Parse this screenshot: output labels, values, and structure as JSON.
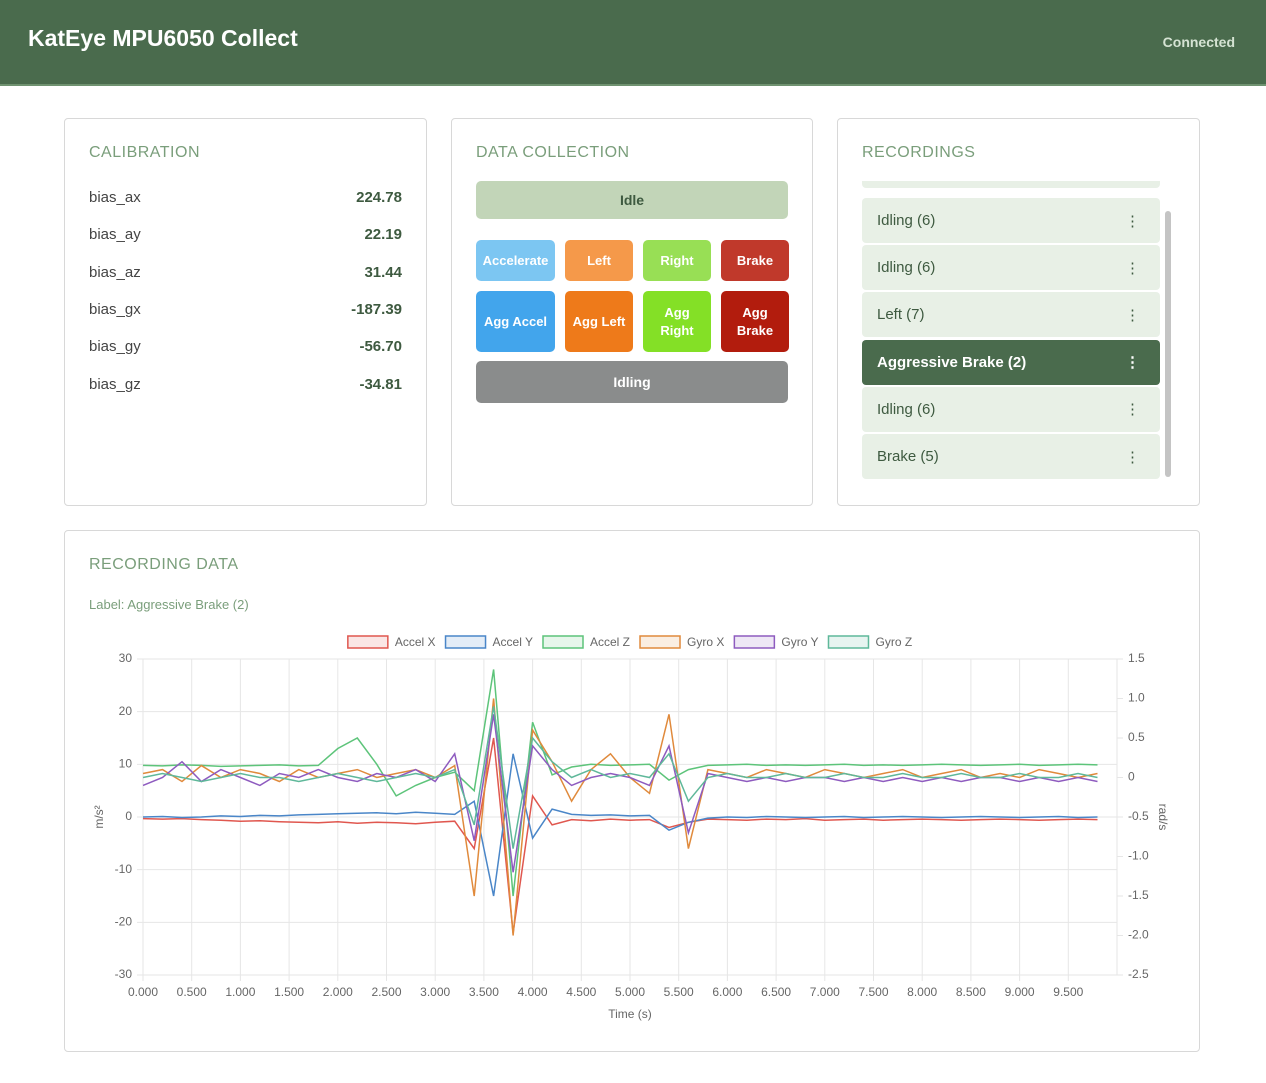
{
  "header": {
    "title": "KatEye MPU6050 Collect",
    "status": "Connected"
  },
  "calibration": {
    "title": "CALIBRATION",
    "rows": [
      [
        "bias_ax",
        "224.78"
      ],
      [
        "bias_ay",
        "22.19"
      ],
      [
        "bias_az",
        "31.44"
      ],
      [
        "bias_gx",
        "-187.39"
      ],
      [
        "bias_gy",
        "-56.70"
      ],
      [
        "bias_gz",
        "-34.81"
      ]
    ]
  },
  "data_collection": {
    "title": "DATA COLLECTION",
    "status": "Idle",
    "buttons": [
      {
        "label": "Accelerate",
        "color": "#7cc6f2"
      },
      {
        "label": "Left",
        "color": "#f5994a"
      },
      {
        "label": "Right",
        "color": "#98df55"
      },
      {
        "label": "Brake",
        "color": "#c0392b"
      },
      {
        "label": "Agg Accel",
        "color": "#42a5ec"
      },
      {
        "label": "Agg Left",
        "color": "#ee7a1a"
      },
      {
        "label": "Agg Right",
        "color": "#84e026"
      },
      {
        "label": "Agg Brake",
        "color": "#b21c0d"
      }
    ],
    "current": "Idling"
  },
  "recordings": {
    "title": "RECORDINGS",
    "items": [
      "Idling (6)",
      "Idling (6)",
      "Left (7)",
      "Aggressive Brake (2)",
      "Idling (6)",
      "Brake (5)"
    ],
    "selected": 3
  },
  "recording_data": {
    "title": "RECORDING DATA",
    "label": "Label: Aggressive Brake (2)"
  },
  "chart_data": {
    "type": "line",
    "x_label": "Time (s)",
    "y_label": "m/s²",
    "y2_label": "rad/s",
    "grid": true,
    "legend": "top",
    "x": [
      0,
      0.2,
      0.4,
      0.6,
      0.8,
      1,
      1.2,
      1.4,
      1.6,
      1.8,
      2,
      2.2,
      2.4,
      2.6,
      2.8,
      3,
      3.2,
      3.4,
      3.6,
      3.8,
      4,
      4.2,
      4.4,
      4.6,
      4.8,
      5,
      5.2,
      5.4,
      5.6,
      5.8,
      6,
      6.2,
      6.4,
      6.6,
      6.8,
      7,
      7.2,
      7.4,
      7.6,
      7.8,
      8,
      8.2,
      8.4,
      8.6,
      8.8,
      9,
      9.2,
      9.4,
      9.6,
      9.8
    ],
    "xlim": [
      0,
      10
    ],
    "xticks": [
      {
        "value": 0,
        "label": "0.000"
      },
      {
        "value": 0.5,
        "label": "0.500"
      },
      {
        "value": 1,
        "label": "1.000"
      },
      {
        "value": 1.5,
        "label": "1.500"
      },
      {
        "value": 2,
        "label": "2.000"
      },
      {
        "value": 2.5,
        "label": "2.500"
      },
      {
        "value": 3,
        "label": "3.000"
      },
      {
        "value": 3.5,
        "label": "3.500"
      },
      {
        "value": 4,
        "label": "4.000"
      },
      {
        "value": 4.5,
        "label": "4.500"
      },
      {
        "value": 5,
        "label": "5.000"
      },
      {
        "value": 5.5,
        "label": "5.500"
      },
      {
        "value": 6,
        "label": "6.000"
      },
      {
        "value": 6.5,
        "label": "6.500"
      },
      {
        "value": 7,
        "label": "7.000"
      },
      {
        "value": 7.5,
        "label": "7.500"
      },
      {
        "value": 8,
        "label": "8.000"
      },
      {
        "value": 8.5,
        "label": "8.500"
      },
      {
        "value": 9,
        "label": "9.000"
      },
      {
        "value": 9.5,
        "label": "9.500"
      }
    ],
    "ylim": [
      -30,
      30
    ],
    "yticks": [
      30,
      20,
      10,
      0,
      -10,
      -20,
      -30
    ],
    "y2lim": [
      -2.5,
      1.5
    ],
    "y2ticks": [
      1.5,
      {
        "value": 1,
        "label": "1.0"
      },
      0.5,
      0,
      -0.5,
      {
        "value": -1,
        "label": "-1.0"
      },
      -1.5,
      {
        "value": -2,
        "label": "-2.0"
      },
      -2.5
    ],
    "series": [
      {
        "name": "Accel X",
        "color": "#e0574f",
        "values": [
          -0.3,
          -0.4,
          -0.3,
          -0.5,
          -0.6,
          -0.8,
          -0.7,
          -0.9,
          -1.0,
          -1.1,
          -0.9,
          -1.2,
          -1.0,
          -1.1,
          -1.3,
          -1.0,
          -0.8,
          -6.0,
          15.0,
          -22.0,
          4.0,
          -1.5,
          -0.5,
          -0.7,
          -0.4,
          -0.6,
          -0.5,
          -2.0,
          -1.0,
          -0.4,
          -0.5,
          -0.6,
          -0.4,
          -0.5,
          -0.3,
          -0.6,
          -0.5,
          -0.4,
          -0.6,
          -0.5,
          -0.4,
          -0.5,
          -0.6,
          -0.5,
          -0.4,
          -0.5,
          -0.6,
          -0.5,
          -0.4,
          -0.5
        ]
      },
      {
        "name": "Accel Y",
        "color": "#4a86c8",
        "values": [
          0.0,
          0.1,
          -0.1,
          0.0,
          0.2,
          0.1,
          0.3,
          0.2,
          0.4,
          0.5,
          0.6,
          0.7,
          0.8,
          0.6,
          0.9,
          0.7,
          0.5,
          3.0,
          -15.0,
          12.0,
          -4.0,
          1.5,
          0.5,
          0.3,
          0.4,
          0.2,
          0.3,
          -2.5,
          -1.0,
          -0.2,
          0.0,
          -0.1,
          0.1,
          0.0,
          -0.1,
          0.0,
          0.1,
          -0.1,
          0.0,
          0.1,
          0.0,
          -0.1,
          0.0,
          0.1,
          0.0,
          -0.1,
          0.0,
          0.1,
          -0.1,
          0.0
        ]
      },
      {
        "name": "Accel Z",
        "color": "#5dc47a",
        "values": [
          9.8,
          9.7,
          9.9,
          9.8,
          9.6,
          9.7,
          9.8,
          9.9,
          9.7,
          9.8,
          13.0,
          15.0,
          10.0,
          4.0,
          6.0,
          7.5,
          8.5,
          5.0,
          28.0,
          -15.0,
          18.0,
          8.0,
          9.5,
          10.0,
          9.8,
          9.9,
          10.0,
          7.0,
          9.0,
          9.8,
          9.9,
          10.0,
          9.8,
          9.9,
          9.8,
          9.9,
          10.0,
          9.8,
          9.9,
          9.8,
          9.9,
          10.0,
          9.9,
          9.8,
          9.9,
          10.0,
          9.8,
          9.9,
          10.0,
          9.9
        ]
      },
      {
        "name": "Gyro X",
        "color": "#e08a3c",
        "axis": "y2",
        "values": [
          0.05,
          0.1,
          -0.05,
          0.15,
          0.0,
          0.1,
          0.05,
          -0.05,
          0.1,
          0.0,
          0.05,
          0.1,
          0.0,
          0.05,
          0.1,
          0.0,
          0.15,
          -1.5,
          1.0,
          -2.0,
          0.6,
          0.2,
          -0.3,
          0.1,
          0.3,
          0.0,
          -0.2,
          0.8,
          -0.9,
          0.1,
          0.05,
          0.0,
          0.1,
          0.05,
          0.0,
          0.1,
          0.05,
          0.0,
          0.05,
          0.1,
          0.0,
          0.05,
          0.1,
          0.0,
          0.05,
          0.0,
          0.1,
          0.05,
          0.0,
          0.05
        ]
      },
      {
        "name": "Gyro Y",
        "color": "#8e5bbf",
        "axis": "y2",
        "values": [
          -0.1,
          0.0,
          0.2,
          -0.05,
          0.1,
          0.0,
          -0.1,
          0.05,
          0.0,
          0.1,
          0.0,
          -0.05,
          0.05,
          0.0,
          0.1,
          -0.05,
          0.3,
          -0.8,
          0.8,
          -1.2,
          0.4,
          0.1,
          -0.1,
          0.0,
          0.05,
          0.0,
          -0.1,
          0.4,
          -0.7,
          0.05,
          0.0,
          -0.05,
          0.0,
          -0.05,
          0.0,
          0.0,
          -0.05,
          0.0,
          -0.05,
          0.0,
          -0.05,
          0.0,
          -0.05,
          0.0,
          0.0,
          -0.05,
          0.0,
          -0.05,
          0.0,
          -0.05
        ]
      },
      {
        "name": "Gyro Z",
        "color": "#5fb89a",
        "axis": "y2",
        "values": [
          0.0,
          0.05,
          0.0,
          -0.05,
          0.0,
          0.05,
          0.0,
          0.0,
          -0.05,
          0.0,
          0.05,
          0.0,
          -0.05,
          0.0,
          0.05,
          0.0,
          0.1,
          -0.6,
          0.9,
          -0.9,
          0.5,
          0.2,
          0.0,
          0.1,
          0.0,
          0.05,
          0.0,
          0.3,
          -0.3,
          0.0,
          0.05,
          0.0,
          0.0,
          0.05,
          0.0,
          0.0,
          0.05,
          0.0,
          0.0,
          0.05,
          0.0,
          0.0,
          0.05,
          0.0,
          0.0,
          0.05,
          0.0,
          0.0,
          0.05,
          0.0
        ]
      }
    ]
  }
}
